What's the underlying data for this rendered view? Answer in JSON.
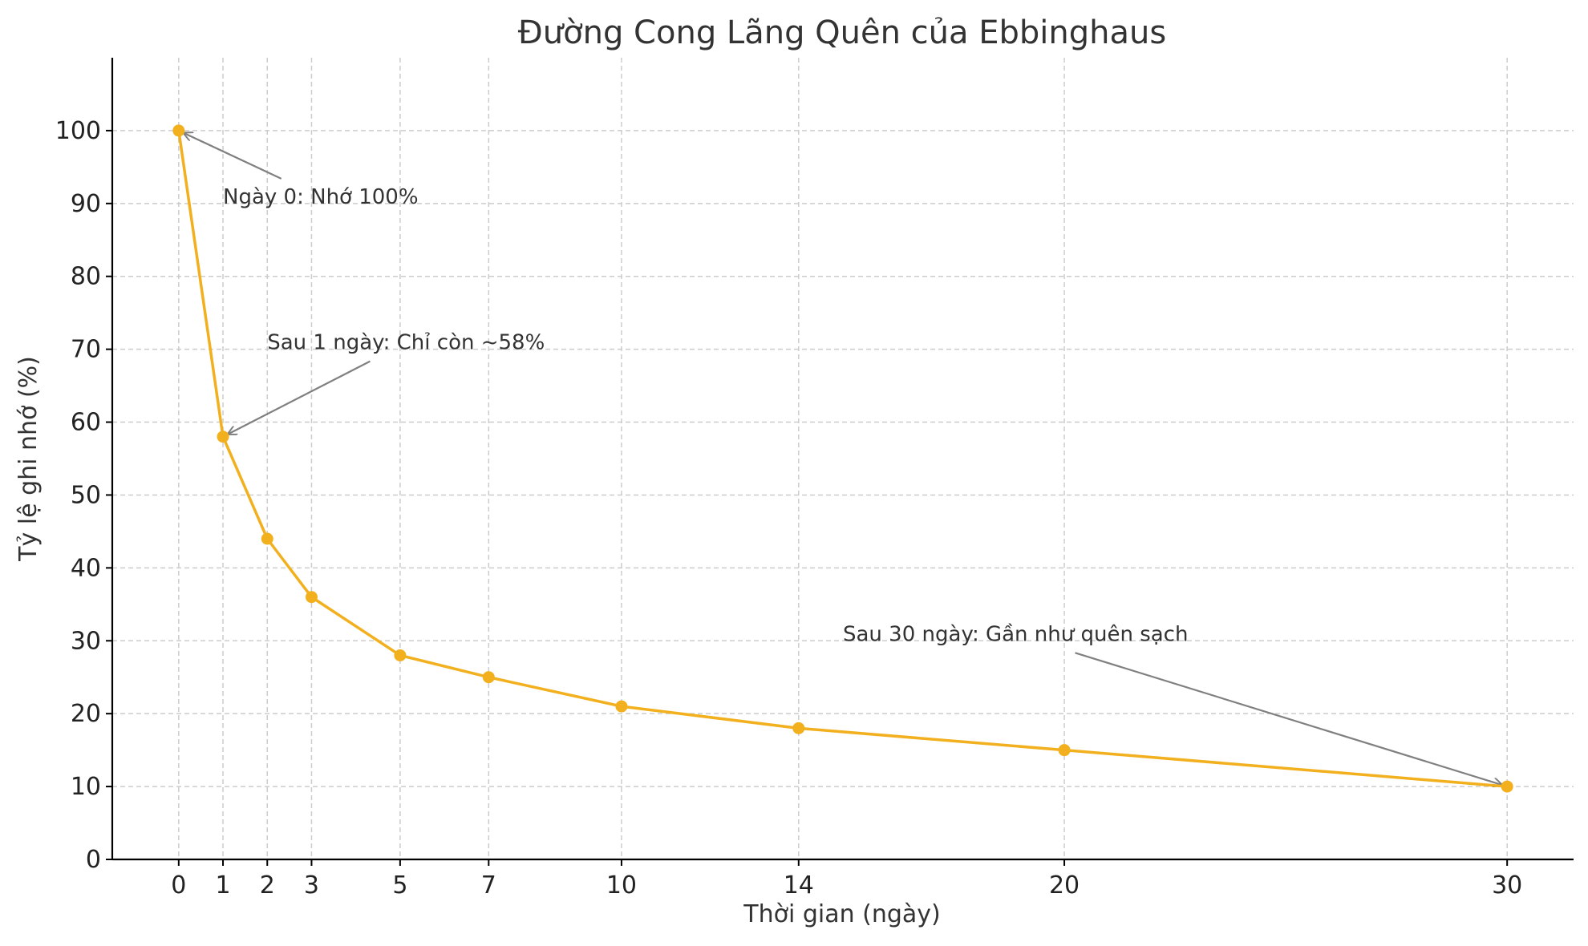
{
  "chart_data": {
    "type": "line",
    "title": "Đường Cong Lãng Quên của Ebbinghaus",
    "xlabel": "Thời gian (ngày)",
    "ylabel": "Tỷ lệ ghi nhớ (%)",
    "x": [
      0,
      1,
      2,
      3,
      5,
      7,
      10,
      14,
      20,
      30
    ],
    "series": [
      {
        "values": [
          100,
          58,
          44,
          36,
          28,
          25,
          21,
          18,
          15,
          10
        ],
        "color": "#f2b01e"
      }
    ],
    "xticks": [
      0,
      1,
      2,
      3,
      5,
      7,
      10,
      14,
      20,
      30
    ],
    "yticks": [
      0,
      10,
      20,
      30,
      40,
      50,
      60,
      70,
      80,
      90,
      100
    ],
    "xlim": [
      -1.5,
      31.5
    ],
    "ylim": [
      0,
      110
    ],
    "grid": true,
    "annotations": [
      {
        "text": "Ngày 0: Nhớ 100%",
        "point": [
          0,
          100
        ],
        "text_pos": [
          1,
          90
        ]
      },
      {
        "text": "Sau 1 ngày: Chỉ còn ~58%",
        "point": [
          1,
          58
        ],
        "text_pos": [
          2,
          70
        ]
      },
      {
        "text": "Sau 30 ngày: Gần như quên sạch",
        "point": [
          30,
          10
        ],
        "text_pos": [
          15,
          30
        ]
      }
    ],
    "colors": {
      "line": "#f2b01e",
      "grid": "#cccccc",
      "arrow": "#808080",
      "axis": "#000000"
    }
  }
}
